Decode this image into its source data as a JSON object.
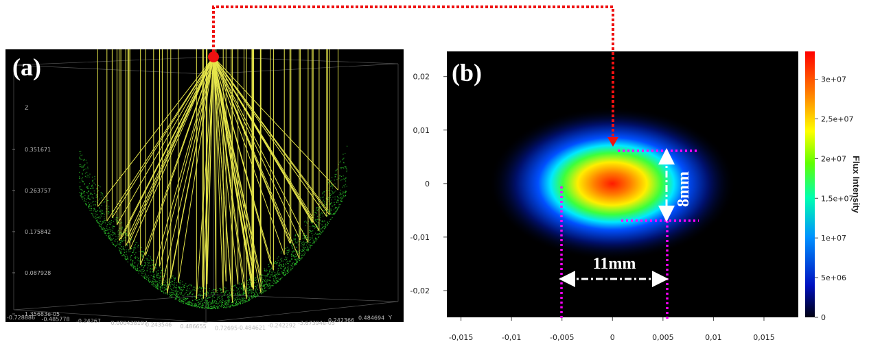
{
  "chart_data": [
    {
      "type": "ray-trace-3d",
      "panel_label": "(a)",
      "z_label": "Z",
      "y_label": "Y",
      "zticks": [
        0.351671,
        0.263757,
        0.175842,
        0.087928,
        {
          "value": 1.35683e-05,
          "label": "1.35683e-05"
        }
      ],
      "xticks": [
        -0.728886,
        -0.485778,
        -0.24267,
        0.000438197,
        0.243546,
        0.486655,
        0.72695
      ],
      "yticks": [
        -0.484621,
        -0.242292,
        {
          "value": -3.67394e-05,
          "label": "-3.67394e-05"
        },
        0.242366,
        0.484694
      ]
    },
    {
      "type": "heatmap",
      "panel_label": "(b)",
      "xlim": [
        -0.0164,
        0.0184
      ],
      "ylim": [
        -0.025,
        0.0247
      ],
      "xticks": [
        {
          "value": -0.015,
          "label": "-0,015"
        },
        {
          "value": -0.01,
          "label": "-0,01"
        },
        {
          "value": -0.005,
          "label": "-0,005"
        },
        0,
        {
          "value": 0.005,
          "label": "0,005"
        },
        {
          "value": 0.01,
          "label": "0,01"
        },
        {
          "value": 0.015,
          "label": "0,015"
        }
      ],
      "yticks": [
        {
          "value": 0.02,
          "label": "0,02"
        },
        {
          "value": 0.01,
          "label": "0,01"
        },
        0,
        {
          "value": -0.01,
          "label": "-0,01"
        },
        {
          "value": -0.02,
          "label": "-0,02"
        }
      ],
      "colorbar": {
        "label": "Flux Intensity",
        "lim": [
          0,
          33500000
        ],
        "ticks": [
          0,
          {
            "value": 5000000,
            "label": "5e+06"
          },
          {
            "value": 10000000,
            "label": "1e+07"
          },
          {
            "value": 15000000,
            "label": "1,5e+07"
          },
          {
            "value": 20000000,
            "label": "2e+07"
          },
          {
            "value": 25000000,
            "label": "2,5e+07"
          },
          {
            "value": 30000000,
            "label": "3e+07"
          }
        ]
      },
      "annotations": [
        "8mm",
        "11mm"
      ]
    }
  ]
}
